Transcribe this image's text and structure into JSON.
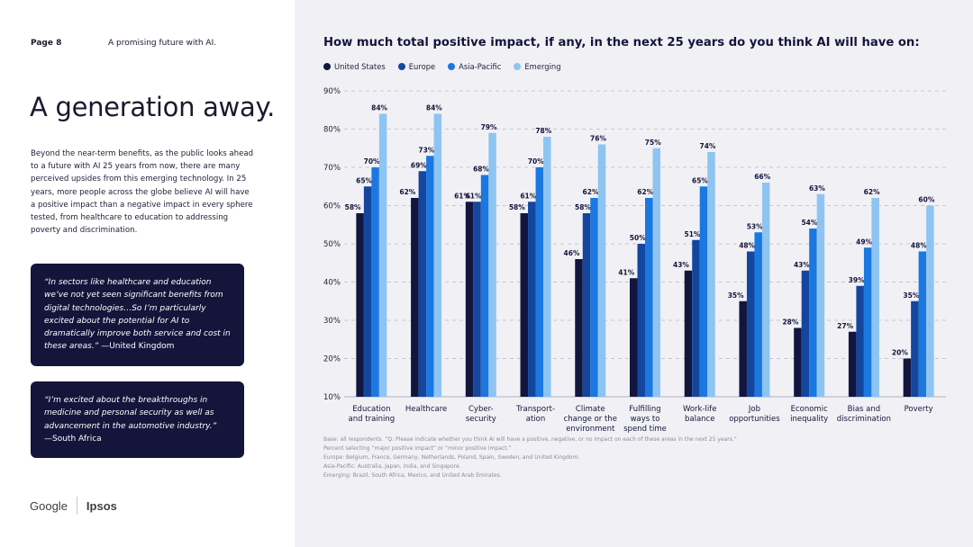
{
  "page": {
    "number": "Page 8",
    "section": "A promising future with AI.",
    "headline": "A generation away.",
    "body": "Beyond the near-term benefits, as the public looks ahead to a future with AI 25 years from now, there are many perceived upsides from this emerging technology. In 25 years, more people across the globe believe AI will have a positive impact than a negative impact in every sphere tested, from healthcare to education to addressing poverty and discrimination.",
    "quote1": {
      "text": "“In sectors like healthcare and education we’ve not yet seen significant benefits from digital technologies…So I’m particularly excited about the potential for AI to dramatically improve both service and cost in these areas.”",
      "attribution": " —United Kingdom"
    },
    "quote2": {
      "text": "“I’m excited about the breakthroughs in medicine and personal security as well as advancement in the automotive industry.”",
      "attribution": "—South Africa"
    },
    "logos": {
      "google": "Google",
      "ipsos": "Ipsos"
    },
    "footnotes": [
      "Base: all respondents. “Q: Please indicate whether you think AI will have a positive, negative, or no impact on each of these areas in the next 25 years.”",
      "Percent selecting “major positive impact” or “minor positive impact.”",
      "Europe: Belgium, France, Germany, Netherlands, Poland, Spain, Sweden, and United Kingdom.",
      "Asia-Pacific: Australia, Japan, India, and Singapore.",
      "Emerging: Brazil, South Africa, Mexico, and United Arab Emirates."
    ]
  },
  "colors": {
    "navy": "#14153b",
    "panel_bg": "#f1f1f5",
    "series": [
      "#12163f",
      "#15469e",
      "#1a78e0",
      "#8ec4f2"
    ]
  },
  "chart_data": {
    "type": "bar",
    "title": "How much total positive impact, if any, in the next 25 years do you think AI will have on:",
    "legend_position": "top-left",
    "grid": true,
    "ylim": [
      10,
      90
    ],
    "yticks": [
      "10%",
      "20%",
      "30%",
      "40%",
      "50%",
      "60%",
      "70%",
      "80%",
      "90%"
    ],
    "categories": [
      [
        "Education",
        "and training"
      ],
      [
        "Healthcare"
      ],
      [
        "Cyber-",
        "security"
      ],
      [
        "Transport-",
        "ation"
      ],
      [
        "Climate",
        "change or the",
        "environment"
      ],
      [
        "Fulfilling",
        "ways to",
        "spend time"
      ],
      [
        "Work-life",
        "balance"
      ],
      [
        "Job",
        "opportunities"
      ],
      [
        "Economic",
        "inequality"
      ],
      [
        "Bias and",
        "discrimination"
      ],
      [
        "Poverty"
      ]
    ],
    "series": [
      {
        "name": "United States",
        "values": [
          58,
          62,
          61,
          58,
          46,
          41,
          43,
          35,
          28,
          27,
          20
        ]
      },
      {
        "name": "Europe",
        "values": [
          65,
          69,
          61,
          61,
          58,
          50,
          51,
          48,
          43,
          39,
          35
        ]
      },
      {
        "name": "Asia-Pacific",
        "values": [
          70,
          73,
          68,
          70,
          62,
          62,
          65,
          53,
          54,
          49,
          48
        ]
      },
      {
        "name": "Emerging",
        "values": [
          84,
          84,
          79,
          78,
          76,
          75,
          74,
          66,
          63,
          62,
          60
        ]
      }
    ]
  }
}
